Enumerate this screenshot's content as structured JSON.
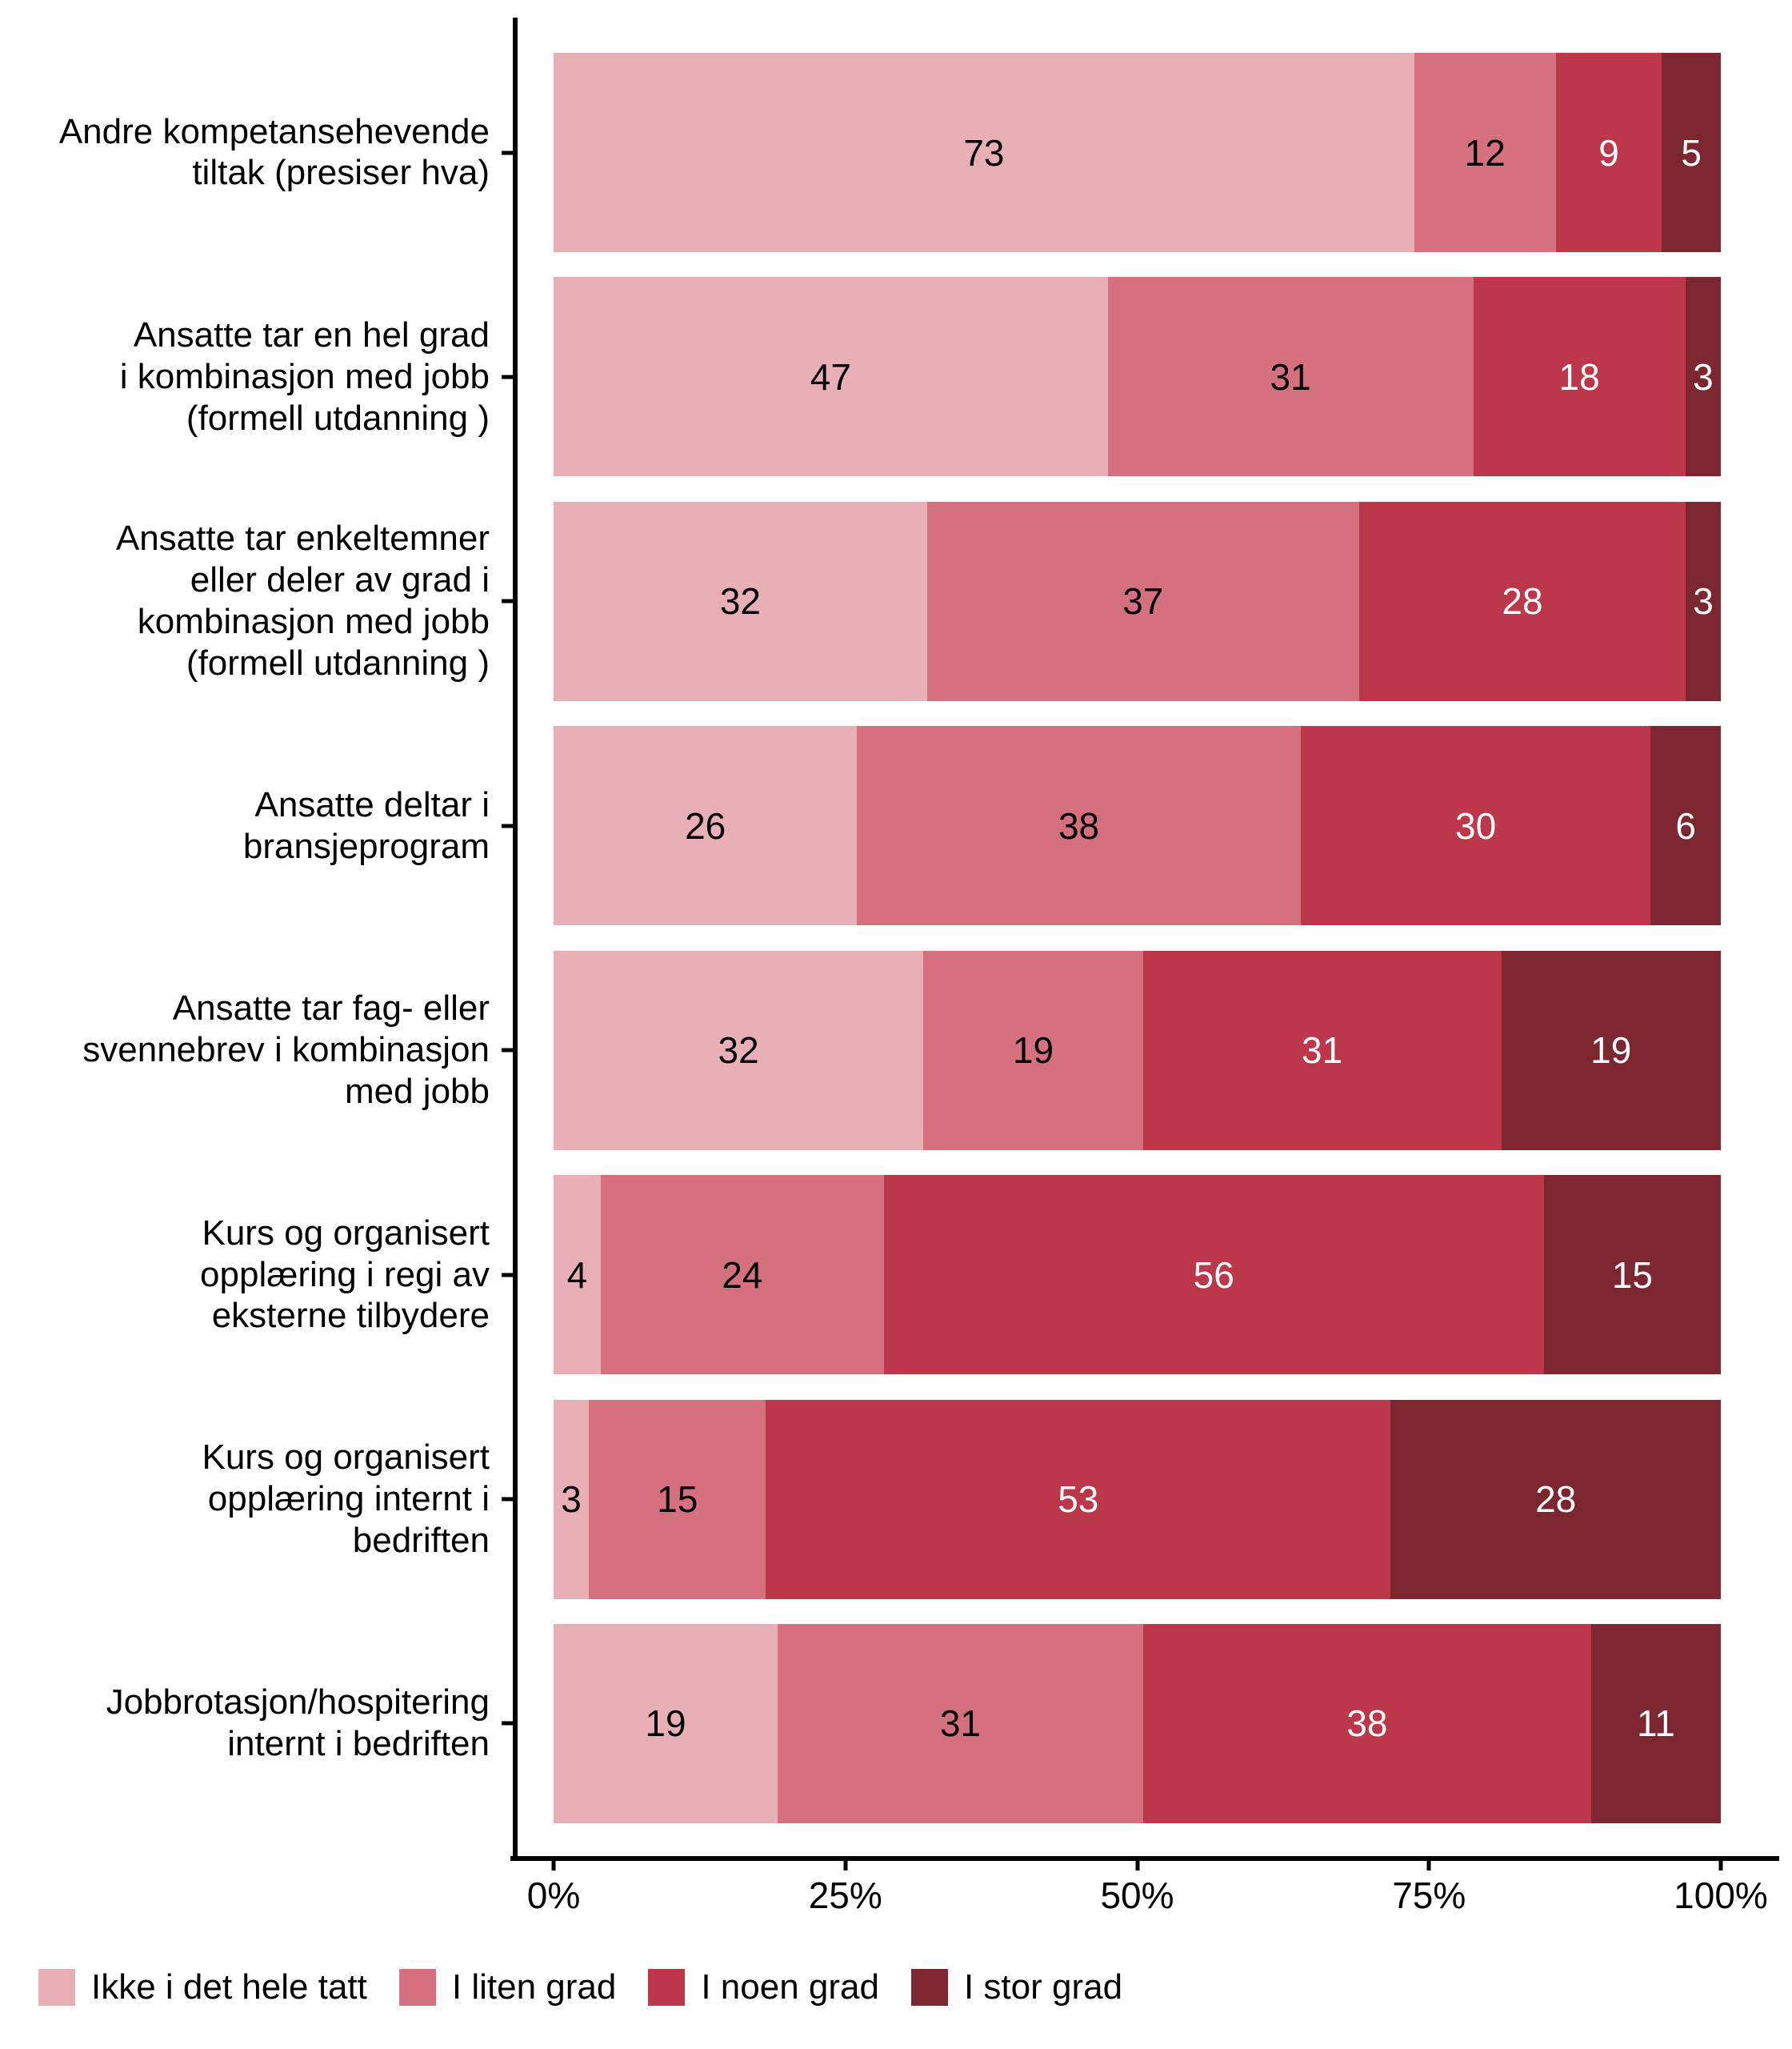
{
  "chart_data": {
    "type": "bar",
    "orientation": "horizontal",
    "stacked": true,
    "normalized_to_100": true,
    "title": "",
    "xlabel": "",
    "ylabel": "",
    "x_axis": {
      "range": [
        0,
        100
      ],
      "ticks": [
        {
          "value": 0,
          "label": "0%"
        },
        {
          "value": 25,
          "label": "25%"
        },
        {
          "value": 50,
          "label": "50%"
        },
        {
          "value": 75,
          "label": "75%"
        },
        {
          "value": 100,
          "label": "100%"
        }
      ]
    },
    "series": [
      {
        "name": "Ikke i det hele tatt",
        "color": "#E9AFB7",
        "label_color": "#000000"
      },
      {
        "name": "I liten grad",
        "color": "#D5717F",
        "label_color": "#000000"
      },
      {
        "name": "I noen grad",
        "color": "#BC3749",
        "label_color": "#FFFFFF"
      },
      {
        "name": "I stor grad",
        "color": "#7C2630",
        "label_color": "#FFFFFF"
      }
    ],
    "categories": [
      {
        "lines": [
          "Andre kompetansehevende",
          "tiltak (presiser hva)"
        ],
        "values": [
          73,
          12,
          9,
          5
        ]
      },
      {
        "lines": [
          "Ansatte tar en hel grad",
          "i kombinasjon med jobb",
          "(formell utdanning )"
        ],
        "values": [
          47,
          31,
          18,
          3
        ]
      },
      {
        "lines": [
          "Ansatte tar enkeltemner",
          "eller deler av grad i",
          "kombinasjon med jobb",
          "(formell utdanning )"
        ],
        "values": [
          32,
          37,
          28,
          3
        ]
      },
      {
        "lines": [
          "Ansatte deltar i",
          "bransjeprogram"
        ],
        "values": [
          26,
          38,
          30,
          6
        ]
      },
      {
        "lines": [
          "Ansatte tar fag- eller",
          "svennebrev i kombinasjon",
          "med jobb"
        ],
        "values": [
          32,
          19,
          31,
          19
        ]
      },
      {
        "lines": [
          "Kurs og organisert",
          "opplæring i regi av",
          "eksterne tilbydere"
        ],
        "values": [
          4,
          24,
          56,
          15
        ]
      },
      {
        "lines": [
          "Kurs og organisert",
          "opplæring internt i",
          "bedriften"
        ],
        "values": [
          3,
          15,
          53,
          28
        ]
      },
      {
        "lines": [
          "Jobbrotasjon/hospitering",
          "internt i bedriften"
        ],
        "values": [
          19,
          31,
          38,
          11
        ]
      }
    ],
    "legend": {
      "position": "bottom-left",
      "entries": [
        "Ikke i det hele tatt",
        "I liten grad",
        "I noen grad",
        "I stor grad"
      ]
    },
    "style": {
      "axis_color": "#000000",
      "text_color": "#000000",
      "background": "#FFFFFF"
    }
  }
}
